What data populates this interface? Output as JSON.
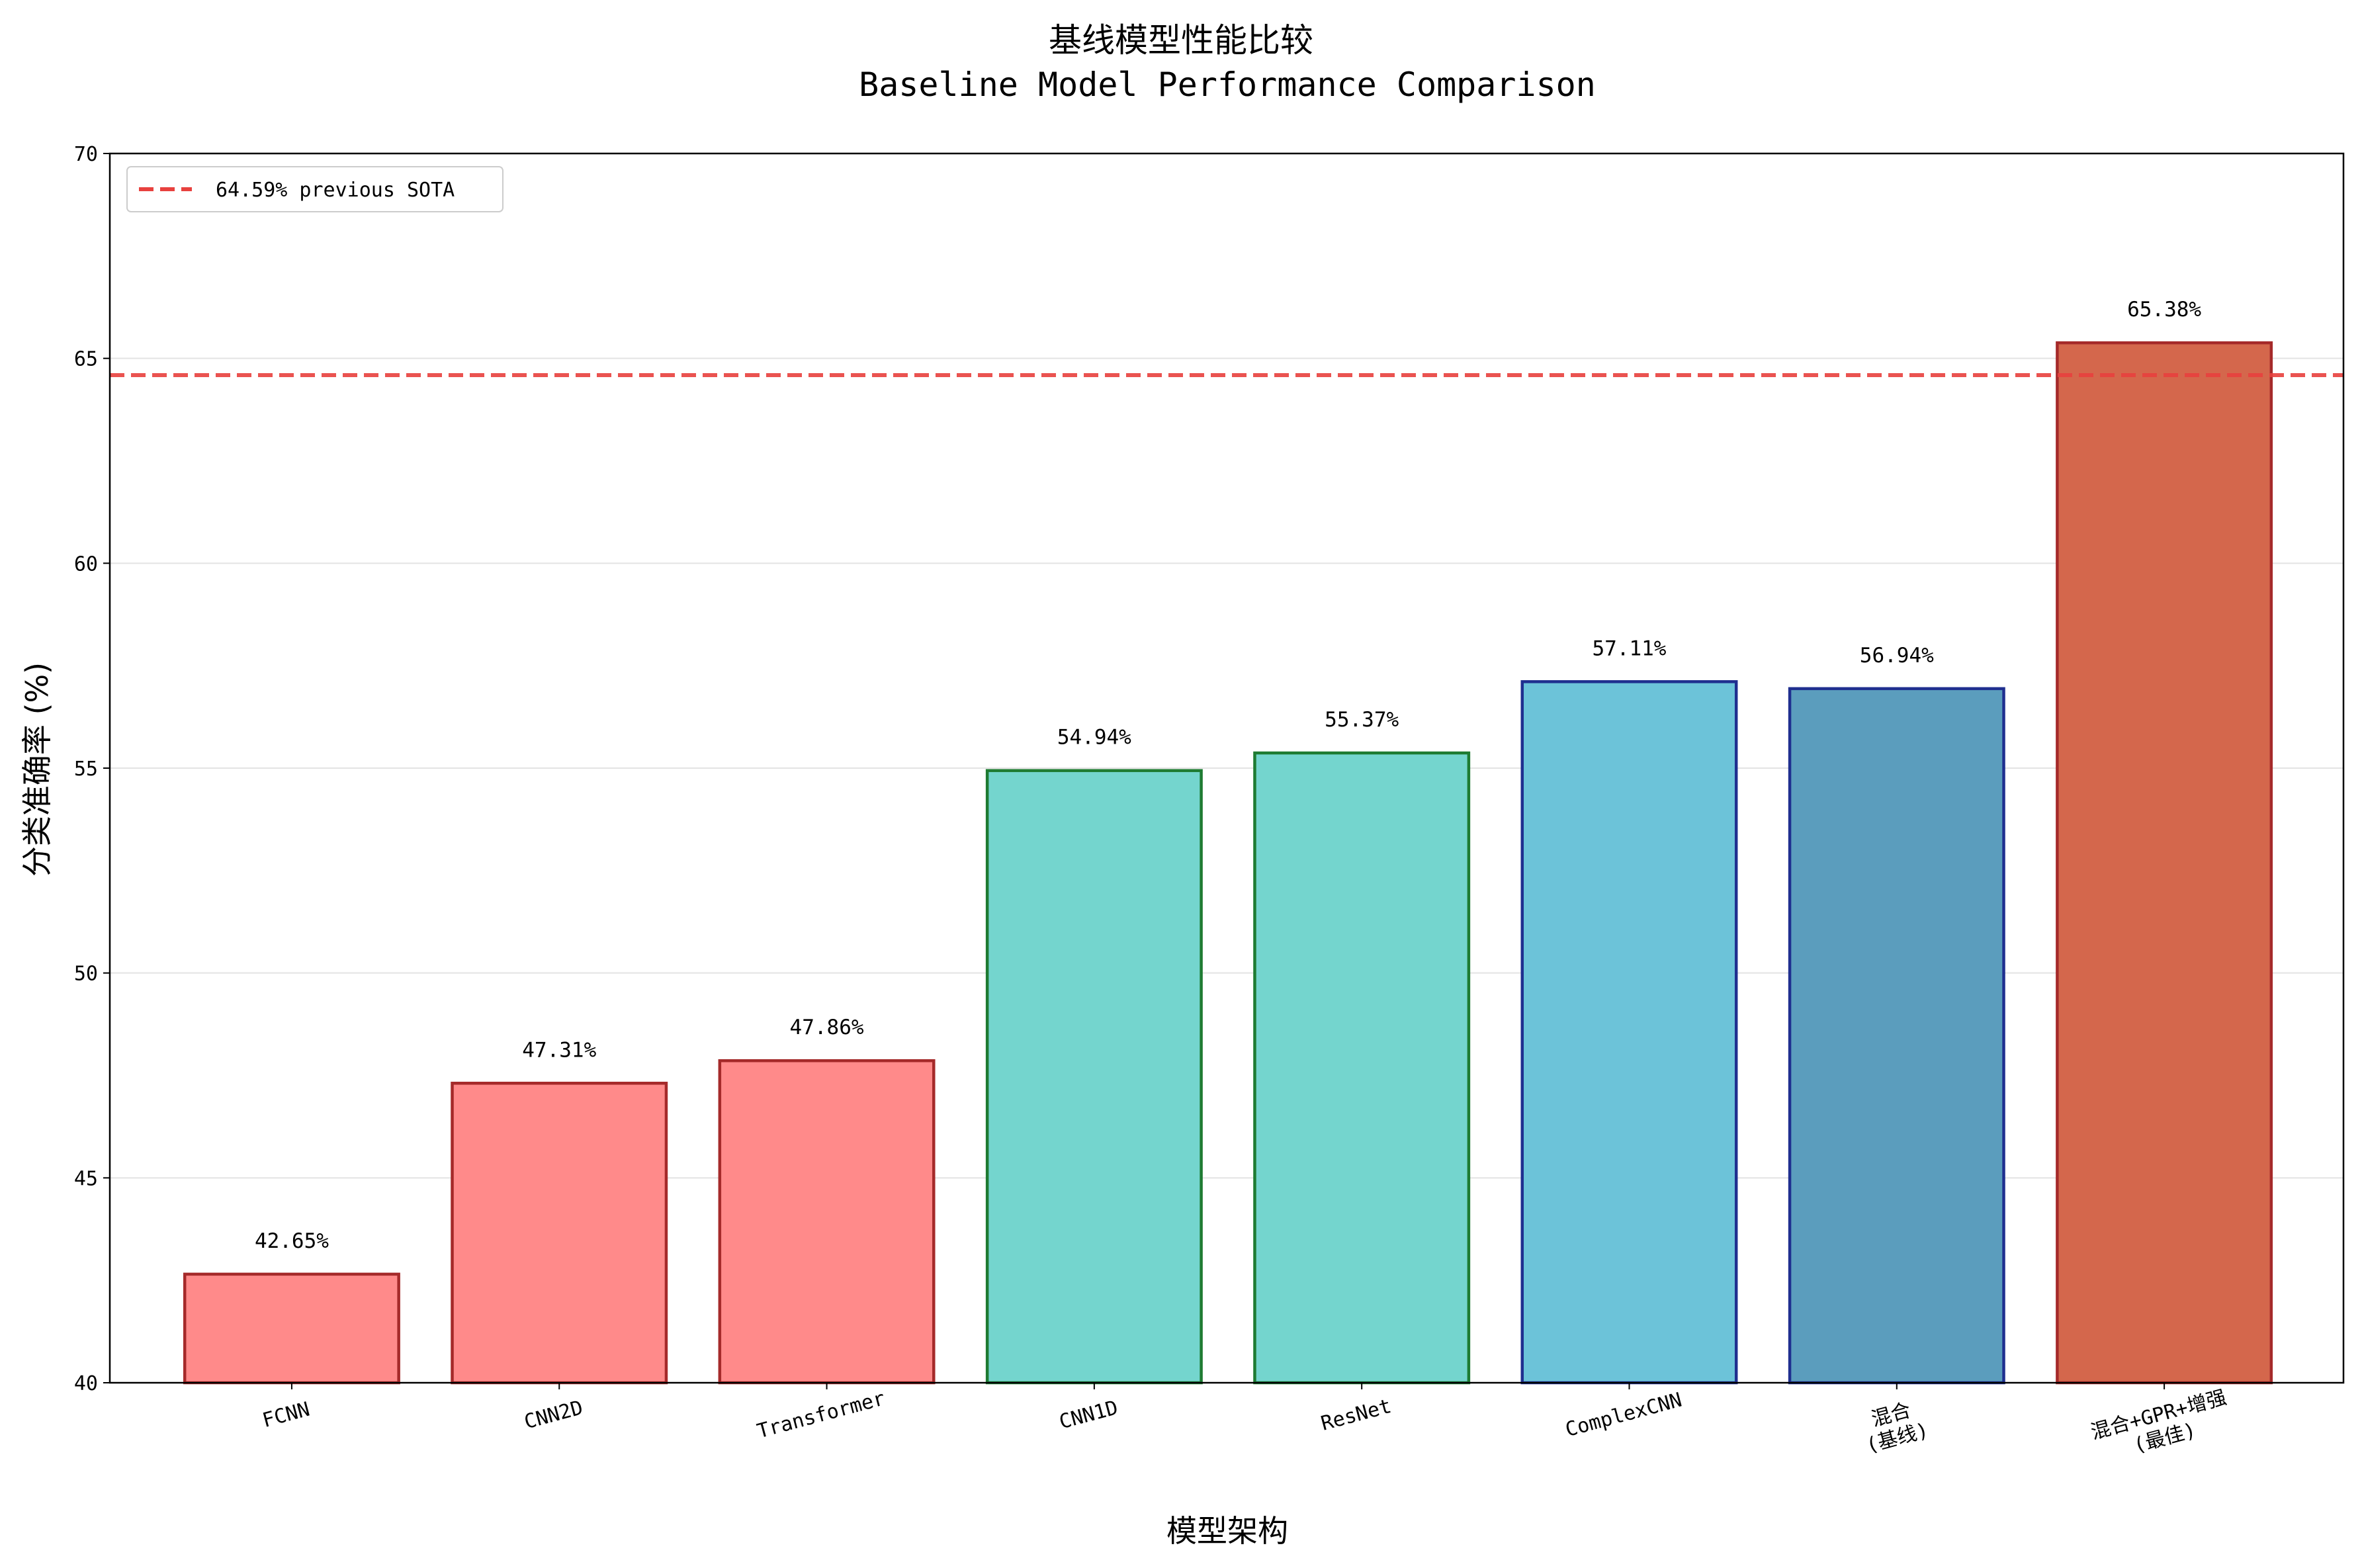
{
  "chart_data": {
    "type": "bar",
    "title": "基线模型性能比较",
    "subtitle": "Baseline Model Performance Comparison",
    "xlabel": "模型架构",
    "ylabel": "分类准确率 (%)",
    "ylim": [
      40,
      70
    ],
    "yticks": [
      "40",
      "45",
      "50",
      "55",
      "60",
      "65",
      "70"
    ],
    "grid": "horizontal",
    "legend_position": "top-left",
    "categories": [
      "FCNN",
      "CNN2D",
      "Transformer",
      "CNN1D",
      "ResNet",
      "ComplexCNN",
      "混合\n(基线)",
      "混合+GPR+增强\n(最佳)"
    ],
    "values": [
      42.65,
      47.31,
      47.86,
      54.94,
      55.37,
      57.11,
      56.94,
      65.38
    ],
    "value_labels": [
      "42.65%",
      "47.31%",
      "47.86%",
      "54.94%",
      "55.37%",
      "57.11%",
      "56.94%",
      "65.38%"
    ],
    "bar_colors": [
      "#ff8a8a",
      "#ff8a8a",
      "#ff8a8a",
      "#74d5ce",
      "#74d5ce",
      "#6cc3d9",
      "#5b9dbd",
      "#d4674c"
    ],
    "edge_colors": [
      "#a52a2a",
      "#a52a2a",
      "#a52a2a",
      "#1e7b32",
      "#1e7b32",
      "#1f2f8f",
      "#1f2f8f",
      "#a52a2a"
    ],
    "reference_line": {
      "value": 64.59,
      "label": "64.59% previous SOTA",
      "color": "#e8413e",
      "style": "dashed"
    }
  }
}
